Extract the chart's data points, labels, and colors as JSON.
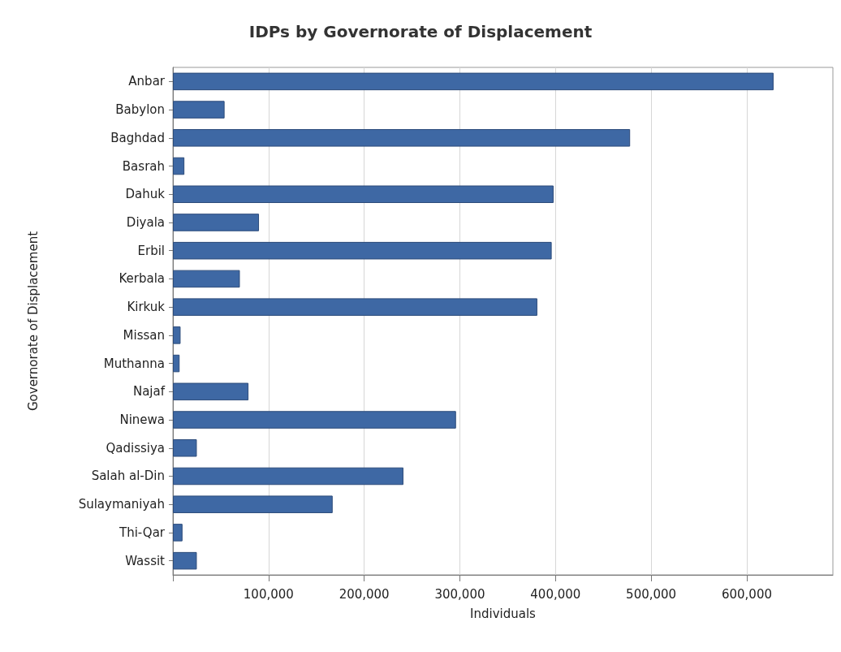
{
  "chart_data": {
    "type": "bar",
    "orientation": "horizontal",
    "title": "IDPs by Governorate of Displacement",
    "xlabel": "Individuals",
    "ylabel": "Governorate of Displacement",
    "categories": [
      "Anbar",
      "Babylon",
      "Baghdad",
      "Basrah",
      "Dahuk",
      "Diyala",
      "Erbil",
      "Kerbala",
      "Kirkuk",
      "Missan",
      "Muthanna",
      "Najaf",
      "Ninewa",
      "Qadissiya",
      "Salah al-Din",
      "Sulaymaniyah",
      "Thi-Qar",
      "Wassit"
    ],
    "values": [
      628000,
      54000,
      478000,
      12000,
      398000,
      90000,
      396000,
      70000,
      381000,
      8000,
      7000,
      79000,
      296000,
      25000,
      241000,
      167000,
      10000,
      25000
    ],
    "color": "#3e68a4",
    "xlim": [
      0,
      690000
    ],
    "xticks": [
      {
        "value": 0,
        "label": null
      },
      {
        "value": 100000,
        "label": "100,000"
      },
      {
        "value": 200000,
        "label": "200,000"
      },
      {
        "value": 300000,
        "label": "300,000"
      },
      {
        "value": 400000,
        "label": "400,000"
      },
      {
        "value": 500000,
        "label": "500,000"
      },
      {
        "value": 600000,
        "label": "600,000"
      }
    ],
    "grid": "x"
  }
}
